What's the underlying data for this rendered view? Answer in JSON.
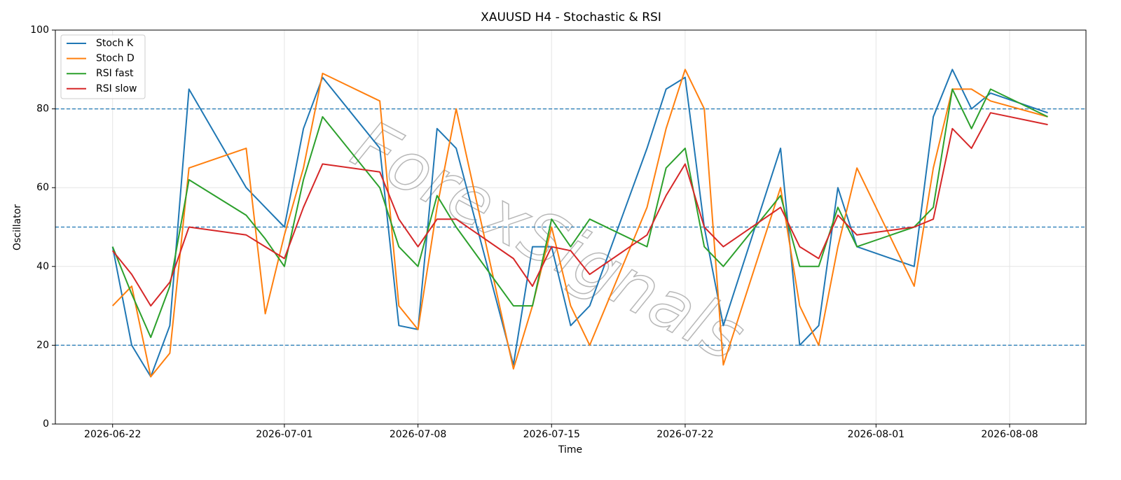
{
  "chart_data": {
    "type": "line",
    "title": "XAUUSD H4 - Stochastic & RSI",
    "x_label": "Time",
    "y_label": "Oscillator",
    "watermark": "ForexSignals",
    "x": [
      "2026-06-22",
      "2026-06-23",
      "2026-06-24",
      "2026-06-25",
      "2026-06-26",
      "2026-06-29",
      "2026-06-30",
      "2026-07-01",
      "2026-07-02",
      "2026-07-03",
      "2026-07-06",
      "2026-07-07",
      "2026-07-08",
      "2026-07-09",
      "2026-07-10",
      "2026-07-13",
      "2026-07-14",
      "2026-07-15",
      "2026-07-16",
      "2026-07-17",
      "2026-07-20",
      "2026-07-21",
      "2026-07-22",
      "2026-07-23",
      "2026-07-24",
      "2026-07-27",
      "2026-07-28",
      "2026-07-29",
      "2026-07-30",
      "2026-07-31",
      "2026-08-03",
      "2026-08-04",
      "2026-08-05",
      "2026-08-06",
      "2026-08-07",
      "2026-08-10"
    ],
    "series": [
      {
        "name": "Stoch K",
        "color": "#1f77b4",
        "values": [
          45,
          20,
          12,
          25,
          85,
          60,
          55,
          50,
          75,
          88,
          70,
          25,
          24,
          75,
          70,
          15,
          45,
          45,
          25,
          30,
          70,
          85,
          88,
          50,
          25,
          70,
          20,
          25,
          60,
          45,
          40,
          78,
          90,
          80,
          84,
          79
        ]
      },
      {
        "name": "Stoch D",
        "color": "#ff7f0e",
        "values": [
          30,
          35,
          12,
          18,
          65,
          70,
          28,
          48,
          65,
          89,
          82,
          30,
          24,
          55,
          80,
          14,
          30,
          50,
          30,
          20,
          55,
          75,
          90,
          80,
          15,
          60,
          30,
          20,
          45,
          65,
          35,
          65,
          85,
          85,
          82,
          78
        ]
      },
      {
        "name": "RSI fast",
        "color": "#2ca02c",
        "values": [
          45,
          33,
          22,
          35,
          62,
          53,
          47,
          40,
          62,
          78,
          60,
          45,
          40,
          58,
          50,
          30,
          30,
          52,
          45,
          52,
          45,
          65,
          70,
          45,
          40,
          58,
          40,
          40,
          55,
          45,
          50,
          55,
          85,
          75,
          85,
          78
        ]
      },
      {
        "name": "RSI slow",
        "color": "#d62728",
        "values": [
          44,
          38,
          30,
          36,
          50,
          48,
          45,
          42,
          55,
          66,
          64,
          52,
          45,
          52,
          52,
          42,
          35,
          45,
          44,
          38,
          48,
          58,
          66,
          50,
          45,
          55,
          45,
          42,
          53,
          48,
          50,
          52,
          75,
          70,
          79,
          76
        ]
      }
    ],
    "xlim": [
      "2026-06-19",
      "2026-08-12"
    ],
    "xticks": [
      "2026-06-22",
      "2026-07-01",
      "2026-07-08",
      "2026-07-15",
      "2026-07-22",
      "2026-08-01",
      "2026-08-08"
    ],
    "ylim": [
      0,
      100
    ],
    "yticks": [
      0,
      20,
      40,
      60,
      80,
      100
    ],
    "hlines": [
      20,
      50,
      80
    ],
    "hline_color": "#1f77b4",
    "grid": true,
    "legend": "upper left"
  }
}
